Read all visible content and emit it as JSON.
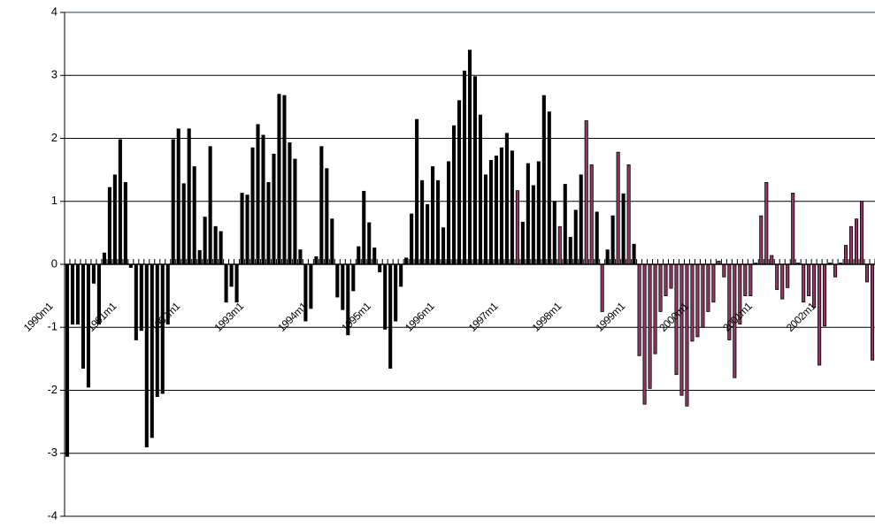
{
  "chart_data": {
    "type": "bar",
    "categories": [
      "1990m1",
      null,
      null,
      null,
      null,
      null,
      null,
      null,
      null,
      null,
      null,
      null,
      "1991m1",
      null,
      null,
      null,
      null,
      null,
      null,
      null,
      null,
      null,
      null,
      null,
      "1992m1",
      null,
      null,
      null,
      null,
      null,
      null,
      null,
      null,
      null,
      null,
      null,
      "1993m1",
      null,
      null,
      null,
      null,
      null,
      null,
      null,
      null,
      null,
      null,
      null,
      "1994m1",
      null,
      null,
      null,
      null,
      null,
      null,
      null,
      null,
      null,
      null,
      null,
      "1995m1",
      null,
      null,
      null,
      null,
      null,
      null,
      null,
      null,
      null,
      null,
      null,
      "1996m1",
      null,
      null,
      null,
      null,
      null,
      null,
      null,
      null,
      null,
      null,
      null,
      "1997m1",
      null,
      null,
      null,
      null,
      null,
      null,
      null,
      null,
      null,
      null,
      null,
      "1998m1",
      null,
      null,
      null,
      null,
      null,
      null,
      null,
      null,
      null,
      null,
      null,
      "1999m1",
      null,
      null,
      null,
      null,
      null,
      null,
      null,
      null,
      null,
      null,
      null,
      "2000m1",
      null,
      null,
      null,
      null,
      null,
      null,
      null,
      null,
      null,
      null,
      null,
      "2001m1",
      null,
      null,
      null,
      null,
      null,
      null,
      null,
      null,
      null,
      null,
      null,
      "2002m1",
      null,
      null,
      null,
      null,
      null,
      null,
      null,
      null
    ],
    "values": [
      -3.05,
      -0.95,
      -0.95,
      -1.65,
      -1.95,
      -0.3,
      -0.95,
      0.18,
      1.22,
      1.42,
      1.98,
      1.3,
      -0.05,
      -1.2,
      -1.05,
      -2.9,
      -2.75,
      -2.1,
      -2.05,
      -0.95,
      1.98,
      2.15,
      1.28,
      2.15,
      1.55,
      0.22,
      0.75,
      1.87,
      0.6,
      0.52,
      -0.6,
      -0.35,
      -0.6,
      1.13,
      1.1,
      1.85,
      2.22,
      2.05,
      1.3,
      1.75,
      2.7,
      2.68,
      1.93,
      1.67,
      0.23,
      -0.9,
      -0.7,
      0.12,
      1.87,
      1.52,
      0.72,
      -0.52,
      -0.72,
      -1.12,
      -0.42,
      0.28,
      1.16,
      0.66,
      0.26,
      -0.12,
      -1.03,
      -1.65,
      -0.9,
      -0.35,
      0.1,
      0.8,
      2.3,
      1.33,
      0.95,
      1.55,
      1.33,
      0.58,
      1.63,
      2.2,
      2.6,
      3.07,
      3.4,
      2.98,
      2.37,
      1.42,
      1.65,
      1.72,
      1.85,
      2.08,
      1.8,
      1.17,
      0.67,
      1.6,
      1.25,
      1.63,
      2.68,
      2.42,
      1.0,
      0.6,
      1.27,
      0.43,
      0.86,
      1.42,
      2.28,
      1.58,
      0.83,
      -0.75,
      0.23,
      0.77,
      1.78,
      1.12,
      1.58,
      0.32,
      -1.45,
      -2.22,
      -1.97,
      -1.42,
      -0.75,
      -0.5,
      -0.38,
      -1.75,
      -2.08,
      -2.25,
      -1.22,
      -1.15,
      -1.0,
      -0.75,
      -0.6,
      0.05,
      -0.2,
      -1.2,
      -1.8,
      -0.95,
      -0.5,
      -0.5,
      0.02,
      0.77,
      1.3,
      0.14,
      -0.4,
      -0.55,
      -0.37,
      1.13,
      0.02,
      -0.6,
      -0.5,
      -0.68,
      -1.6,
      -0.98,
      0.02,
      -0.2,
      0.02,
      0.3,
      0.6,
      0.72,
      1.0,
      -0.28,
      -1.52
    ],
    "colors": [
      "#000000",
      "#000000",
      "#000000",
      "#000000",
      "#000000",
      "#000000",
      "#000000",
      "#000000",
      "#000000",
      "#000000",
      "#000000",
      "#000000",
      "#000000",
      "#000000",
      "#000000",
      "#000000",
      "#000000",
      "#000000",
      "#000000",
      "#000000",
      "#000000",
      "#000000",
      "#000000",
      "#000000",
      "#000000",
      "#000000",
      "#000000",
      "#000000",
      "#000000",
      "#000000",
      "#000000",
      "#000000",
      "#000000",
      "#000000",
      "#000000",
      "#000000",
      "#000000",
      "#000000",
      "#000000",
      "#000000",
      "#000000",
      "#000000",
      "#000000",
      "#000000",
      "#000000",
      "#000000",
      "#000000",
      "#000000",
      "#000000",
      "#000000",
      "#000000",
      "#000000",
      "#000000",
      "#000000",
      "#000000",
      "#000000",
      "#000000",
      "#000000",
      "#000000",
      "#000000",
      "#000000",
      "#000000",
      "#000000",
      "#000000",
      "#000000",
      "#000000",
      "#000000",
      "#000000",
      "#000000",
      "#000000",
      "#000000",
      "#000000",
      "#000000",
      "#000000",
      "#000000",
      "#000000",
      "#000000",
      "#000000",
      "#000000",
      "#000000",
      "#000000",
      "#000000",
      "#000000",
      "#000000",
      "#000000",
      "#993366",
      "#000000",
      "#000000",
      "#000000",
      "#000000",
      "#000000",
      "#000000",
      "#000000",
      "#993366",
      "#000000",
      "#000000",
      "#000000",
      "#000000",
      "#993366",
      "#993366",
      "#000000",
      "#993366",
      "#000000",
      "#000000",
      "#993366",
      "#000000",
      "#993366",
      "#000000",
      "#993366",
      "#993366",
      "#993366",
      "#993366",
      "#993366",
      "#993366",
      "#993366",
      "#993366",
      "#993366",
      "#993366",
      "#993366",
      "#993366",
      "#993366",
      "#993366",
      "#993366",
      "#993366",
      "#993366",
      "#993366",
      "#993366",
      "#993366",
      "#993366",
      "#993366",
      "#993366",
      "#993366",
      "#993366",
      "#993366",
      "#993366",
      "#993366",
      "#993366",
      "#993366",
      "#993366",
      "#993366",
      "#993366",
      "#993366",
      "#993366",
      "#993366",
      "#993366",
      "#993366",
      "#993366",
      "#993366",
      "#993366",
      "#993366",
      "#993366",
      "#993366",
      "#993366"
    ],
    "ylim": [
      -4,
      4
    ],
    "yticks": [
      -4,
      -3,
      -2,
      -1,
      0,
      1,
      2,
      3,
      4
    ],
    "grid": true
  }
}
